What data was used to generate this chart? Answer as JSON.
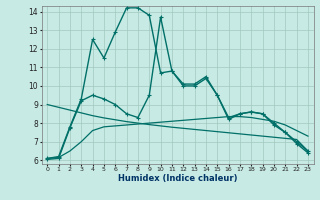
{
  "xlabel": "Humidex (Indice chaleur)",
  "xlim": [
    -0.5,
    23.5
  ],
  "ylim": [
    5.8,
    14.3
  ],
  "yticks": [
    6,
    7,
    8,
    9,
    10,
    11,
    12,
    13,
    14
  ],
  "xticks": [
    0,
    1,
    2,
    3,
    4,
    5,
    6,
    7,
    8,
    9,
    10,
    11,
    12,
    13,
    14,
    15,
    16,
    17,
    18,
    19,
    20,
    21,
    22,
    23
  ],
  "bg_color": "#c8eae4",
  "grid_color": "#a0c8c0",
  "line_color": "#007068",
  "series": [
    {
      "x": [
        0,
        1,
        2,
        3,
        4,
        5,
        6,
        7,
        8,
        9,
        10,
        11,
        12,
        13,
        14,
        15,
        16,
        17,
        18,
        19,
        20,
        21,
        22,
        23
      ],
      "y": [
        6.1,
        6.2,
        7.8,
        9.3,
        12.5,
        11.5,
        12.9,
        14.2,
        14.2,
        13.8,
        10.7,
        10.8,
        10.1,
        10.1,
        10.5,
        9.5,
        8.3,
        8.5,
        8.6,
        8.5,
        8.0,
        7.5,
        7.0,
        6.5
      ],
      "marker": "+",
      "linewidth": 1.0
    },
    {
      "x": [
        0,
        1,
        2,
        3,
        4,
        5,
        6,
        7,
        8,
        9,
        10,
        11,
        12,
        13,
        14,
        15,
        16,
        17,
        18,
        19,
        20,
        21,
        22,
        23
      ],
      "y": [
        6.05,
        6.1,
        7.75,
        9.2,
        9.5,
        9.3,
        9.0,
        8.5,
        8.3,
        9.5,
        13.7,
        10.8,
        10.0,
        10.0,
        10.4,
        9.5,
        8.2,
        8.5,
        8.6,
        8.5,
        7.9,
        7.5,
        6.9,
        6.4
      ],
      "marker": "+",
      "linewidth": 1.0
    },
    {
      "x": [
        0,
        1,
        2,
        3,
        4,
        5,
        6,
        7,
        8,
        9,
        10,
        11,
        12,
        13,
        14,
        15,
        16,
        17,
        18,
        19,
        20,
        21,
        22,
        23
      ],
      "y": [
        9.0,
        8.85,
        8.7,
        8.55,
        8.4,
        8.28,
        8.18,
        8.08,
        8.0,
        7.92,
        7.85,
        7.78,
        7.72,
        7.66,
        7.6,
        7.54,
        7.48,
        7.42,
        7.36,
        7.3,
        7.24,
        7.18,
        7.12,
        6.5
      ],
      "marker": null,
      "linewidth": 0.9
    },
    {
      "x": [
        0,
        1,
        2,
        3,
        4,
        5,
        6,
        7,
        8,
        9,
        10,
        11,
        12,
        13,
        14,
        15,
        16,
        17,
        18,
        19,
        20,
        21,
        22,
        23
      ],
      "y": [
        6.1,
        6.15,
        6.5,
        7.0,
        7.6,
        7.8,
        7.85,
        7.9,
        7.95,
        8.0,
        8.05,
        8.1,
        8.15,
        8.2,
        8.25,
        8.3,
        8.35,
        8.35,
        8.3,
        8.2,
        8.1,
        7.9,
        7.6,
        7.3
      ],
      "marker": null,
      "linewidth": 0.9
    }
  ]
}
